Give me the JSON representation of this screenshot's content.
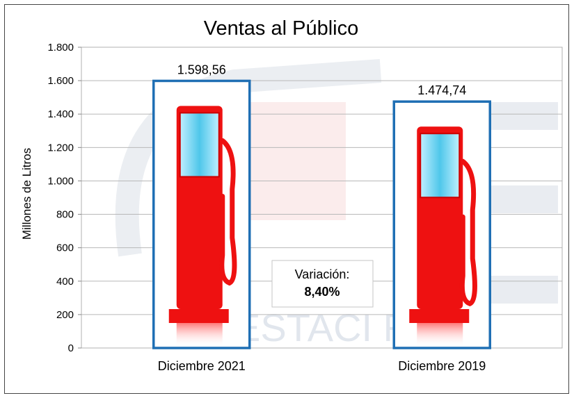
{
  "chart_data": {
    "type": "bar",
    "title": "Ventas al Público",
    "ylabel": "Millones de Litros",
    "xlabel": "",
    "categories": [
      "Diciembre 2021",
      "Diciembre 2019"
    ],
    "values": [
      1598.56,
      1474.74
    ],
    "value_labels": [
      "1.598,56",
      "1.474,74"
    ],
    "ylim": [
      0,
      1800
    ],
    "yticks": [
      0,
      200,
      400,
      600,
      800,
      1000,
      1200,
      1400,
      1600,
      1800
    ],
    "ytick_labels": [
      "0",
      "200",
      "400",
      "600",
      "800",
      "1.000",
      "1.200",
      "1.400",
      "1.600",
      "1.800"
    ],
    "grid": true,
    "bar_style": "fuel-pump-picture",
    "colors": {
      "bar_border": "#1f6fb4",
      "pump": "#ee1111",
      "screen": "#7ad8f0",
      "grid": "#b8b8b8"
    },
    "annotation": {
      "line1": "Variación:",
      "line2": "8,40%"
    },
    "watermark": "ESTACI     RO"
  }
}
